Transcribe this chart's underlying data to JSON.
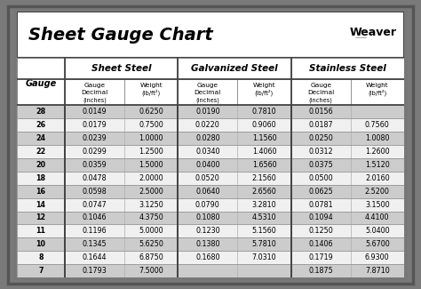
{
  "title": "Sheet Gauge Chart",
  "outer_bg": "#7a7a7a",
  "inner_bg": "#ffffff",
  "header_sec_bg": "#ffffff",
  "header_sub_bg": "#ffffff",
  "row_dark_bg": "#cccccc",
  "row_light_bg": "#f0f0f0",
  "border_dark": "#444444",
  "border_light": "#aaaaaa",
  "gauges": [
    28,
    26,
    24,
    22,
    20,
    18,
    16,
    14,
    12,
    11,
    10,
    8,
    7
  ],
  "sheet_steel": {
    "decimal": [
      "0.0149",
      "0.0179",
      "0.0239",
      "0.0299",
      "0.0359",
      "0.0478",
      "0.0598",
      "0.0747",
      "0.1046",
      "0.1196",
      "0.1345",
      "0.1644",
      "0.1793"
    ],
    "weight": [
      "0.6250",
      "0.7500",
      "1.0000",
      "1.2500",
      "1.5000",
      "2.0000",
      "2.5000",
      "3.1250",
      "4.3750",
      "5.0000",
      "5.6250",
      "6.8750",
      "7.5000"
    ]
  },
  "galvanized_steel": {
    "decimal": [
      "0.0190",
      "0.0220",
      "0.0280",
      "0.0340",
      "0.0400",
      "0.0520",
      "0.0640",
      "0.0790",
      "0.1080",
      "0.1230",
      "0.1380",
      "0.1680",
      ""
    ],
    "weight": [
      "0.7810",
      "0.9060",
      "1.1560",
      "1.4060",
      "1.6560",
      "2.1560",
      "2.6560",
      "3.2810",
      "4.5310",
      "5.1560",
      "5.7810",
      "7.0310",
      ""
    ]
  },
  "stainless_steel": {
    "decimal": [
      "0.0156",
      "0.0187",
      "0.0250",
      "0.0312",
      "0.0375",
      "0.0500",
      "0.0625",
      "0.0781",
      "0.1094",
      "0.1250",
      "0.1406",
      "0.1719",
      "0.1875"
    ],
    "weight": [
      "",
      "0.7560",
      "1.0080",
      "1.2600",
      "1.5120",
      "2.0160",
      "2.5200",
      "3.1500",
      "4.4100",
      "5.0400",
      "5.6700",
      "6.9300",
      "7.8710"
    ]
  },
  "col_weights": [
    0.85,
    1.05,
    0.95,
    1.05,
    0.95,
    1.05,
    0.95
  ],
  "figsize": [
    4.74,
    3.25
  ],
  "dpi": 100
}
